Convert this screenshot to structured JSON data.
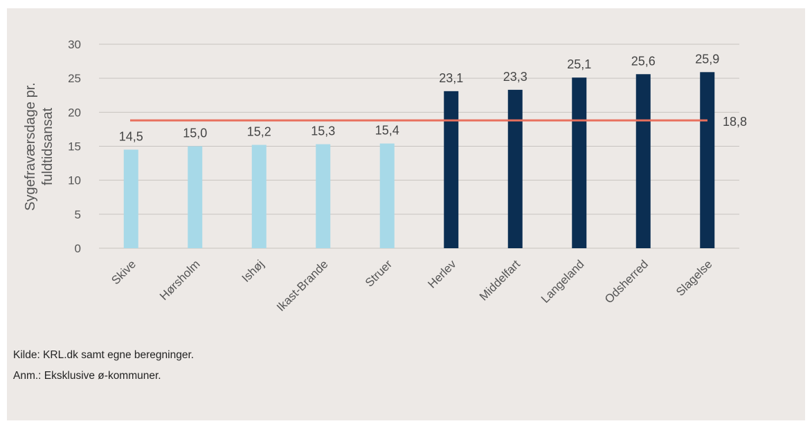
{
  "chart_data": {
    "type": "bar",
    "categories": [
      "Skive",
      "Hørsholm",
      "Ishøj",
      "Ikast-Brande",
      "Struer",
      "Herlev",
      "Middelfart",
      "Langeland",
      "Odsherred",
      "Slagelse"
    ],
    "values": [
      14.5,
      15.0,
      15.2,
      15.3,
      15.4,
      23.1,
      23.3,
      25.1,
      25.6,
      25.9
    ],
    "value_labels": [
      "14,5",
      "15,0",
      "15,2",
      "15,3",
      "15,4",
      "23,1",
      "23,3",
      "25,1",
      "25,6",
      "25,9"
    ],
    "bar_colors": [
      "#a7d9e8",
      "#a7d9e8",
      "#a7d9e8",
      "#a7d9e8",
      "#a7d9e8",
      "#0b2e52",
      "#0b2e52",
      "#0b2e52",
      "#0b2e52",
      "#0b2e52"
    ],
    "reference_line": {
      "value": 18.8,
      "label": "18,8",
      "color": "#e8705e"
    },
    "ylabel_lines": [
      "Sygefraværsdage pr.",
      "fuldtidsansat"
    ],
    "ylim": [
      0,
      30
    ],
    "yticks": [
      0,
      5,
      10,
      15,
      20,
      25,
      30
    ],
    "grid": true,
    "gridline_color": "#c7c3bf"
  },
  "footer": {
    "source": "Kilde: KRL.dk samt egne beregninger.",
    "note": "Anm.: Eksklusive ø-kommuner."
  }
}
